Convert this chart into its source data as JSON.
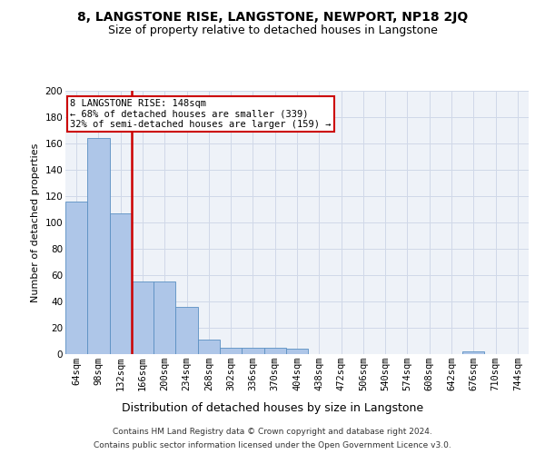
{
  "title": "8, LANGSTONE RISE, LANGSTONE, NEWPORT, NP18 2JQ",
  "subtitle": "Size of property relative to detached houses in Langstone",
  "xlabel": "Distribution of detached houses by size in Langstone",
  "ylabel": "Number of detached properties",
  "footer_line1": "Contains HM Land Registry data © Crown copyright and database right 2024.",
  "footer_line2": "Contains public sector information licensed under the Open Government Licence v3.0.",
  "categories": [
    "64sqm",
    "98sqm",
    "132sqm",
    "166sqm",
    "200sqm",
    "234sqm",
    "268sqm",
    "302sqm",
    "336sqm",
    "370sqm",
    "404sqm",
    "438sqm",
    "472sqm",
    "506sqm",
    "540sqm",
    "574sqm",
    "608sqm",
    "642sqm",
    "676sqm",
    "710sqm",
    "744sqm"
  ],
  "values": [
    116,
    164,
    107,
    55,
    55,
    36,
    11,
    5,
    5,
    5,
    4,
    0,
    0,
    0,
    0,
    0,
    0,
    0,
    2,
    0,
    0
  ],
  "bar_color": "#aec6e8",
  "bar_edge_color": "#5a8fc2",
  "vline_color": "#cc0000",
  "annotation_text": "8 LANGSTONE RISE: 148sqm\n← 68% of detached houses are smaller (339)\n32% of semi-detached houses are larger (159) →",
  "annotation_box_color": "#cc0000",
  "ylim": [
    0,
    200
  ],
  "yticks": [
    0,
    20,
    40,
    60,
    80,
    100,
    120,
    140,
    160,
    180,
    200
  ],
  "grid_color": "#d0d8e8",
  "background_color": "#eef2f8",
  "title_fontsize": 10,
  "subtitle_fontsize": 9,
  "xlabel_fontsize": 9,
  "ylabel_fontsize": 8,
  "tick_fontsize": 7.5,
  "annotation_fontsize": 7.5,
  "footer_fontsize": 6.5
}
